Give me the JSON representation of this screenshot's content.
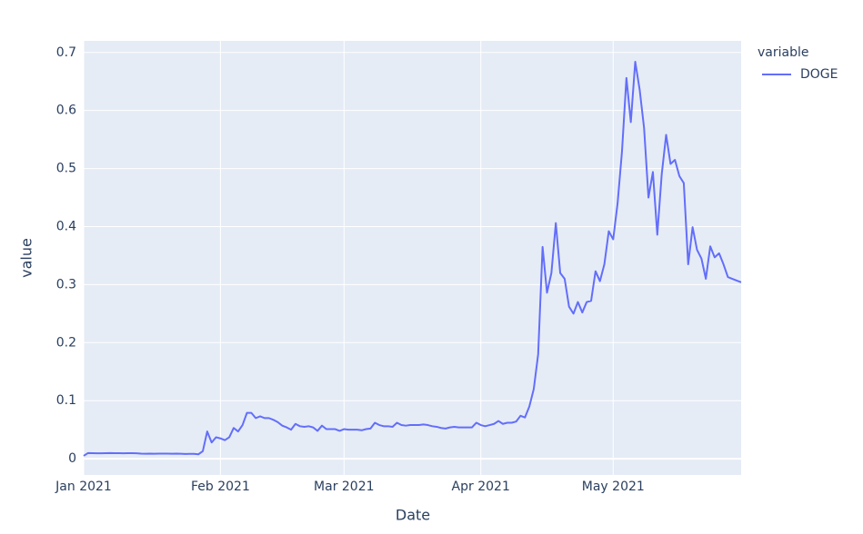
{
  "chart_data": {
    "type": "line",
    "x_label": "Date",
    "y_label": "value",
    "legend_title": "variable",
    "legend_position": "right",
    "grid": true,
    "x": [
      0,
      1,
      2,
      3,
      4,
      5,
      6,
      7,
      8,
      9,
      10,
      11,
      12,
      13,
      14,
      15,
      16,
      17,
      18,
      19,
      20,
      21,
      22,
      23,
      24,
      25,
      26,
      27,
      28,
      29,
      30,
      31,
      32,
      33,
      34,
      35,
      36,
      37,
      38,
      39,
      40,
      41,
      42,
      43,
      44,
      45,
      46,
      47,
      48,
      49,
      50,
      51,
      52,
      53,
      54,
      55,
      56,
      57,
      58,
      59,
      60,
      61,
      62,
      63,
      64,
      65,
      66,
      67,
      68,
      69,
      70,
      71,
      72,
      73,
      74,
      75,
      76,
      77,
      78,
      79,
      80,
      81,
      82,
      83,
      84,
      85,
      86,
      87,
      88,
      89,
      90,
      91,
      92,
      93,
      94,
      95,
      96,
      97,
      98,
      99,
      100,
      101,
      102,
      103,
      104,
      105,
      106,
      107,
      108,
      109,
      110,
      111,
      112,
      113,
      114,
      115,
      116,
      117,
      118,
      119,
      120,
      121,
      122,
      123,
      124,
      125,
      126,
      127,
      128,
      129,
      130,
      131,
      132,
      133,
      134,
      135,
      136,
      137,
      138,
      139,
      140,
      141,
      142,
      143,
      144,
      145,
      146,
      147,
      148,
      149
    ],
    "xlim": [
      0,
      149
    ],
    "xticks": [
      {
        "value": 0,
        "label": "Jan 2021"
      },
      {
        "value": 31,
        "label": "Feb 2021"
      },
      {
        "value": 59,
        "label": "Mar 2021"
      },
      {
        "value": 90,
        "label": "Apr 2021"
      },
      {
        "value": 120,
        "label": "May 2021"
      }
    ],
    "ylim": [
      -0.028,
      0.72
    ],
    "yticks": [
      0,
      0.1,
      0.2,
      0.3,
      0.4,
      0.5,
      0.6,
      0.7
    ],
    "series": [
      {
        "name": "DOGE",
        "color": "#636efa",
        "values": [
          0.005,
          0.0098,
          0.0095,
          0.0093,
          0.0094,
          0.0096,
          0.0097,
          0.0096,
          0.0095,
          0.0094,
          0.0096,
          0.0095,
          0.0093,
          0.0087,
          0.0086,
          0.0087,
          0.0085,
          0.0087,
          0.0088,
          0.0087,
          0.0086,
          0.0087,
          0.0085,
          0.0082,
          0.0083,
          0.0083,
          0.0076,
          0.013,
          0.047,
          0.028,
          0.037,
          0.035,
          0.032,
          0.037,
          0.053,
          0.047,
          0.058,
          0.079,
          0.079,
          0.07,
          0.073,
          0.07,
          0.07,
          0.067,
          0.063,
          0.057,
          0.054,
          0.05,
          0.06,
          0.056,
          0.055,
          0.056,
          0.054,
          0.048,
          0.057,
          0.051,
          0.051,
          0.051,
          0.048,
          0.051,
          0.05,
          0.05,
          0.05,
          0.049,
          0.051,
          0.052,
          0.062,
          0.058,
          0.056,
          0.056,
          0.055,
          0.062,
          0.058,
          0.057,
          0.058,
          0.058,
          0.058,
          0.059,
          0.058,
          0.056,
          0.055,
          0.053,
          0.052,
          0.054,
          0.055,
          0.054,
          0.054,
          0.054,
          0.054,
          0.062,
          0.058,
          0.056,
          0.058,
          0.06,
          0.065,
          0.06,
          0.062,
          0.062,
          0.064,
          0.074,
          0.071,
          0.09,
          0.12,
          0.18,
          0.365,
          0.286,
          0.32,
          0.406,
          0.32,
          0.31,
          0.262,
          0.25,
          0.27,
          0.252,
          0.27,
          0.272,
          0.323,
          0.306,
          0.335,
          0.392,
          0.378,
          0.44,
          0.53,
          0.656,
          0.58,
          0.684,
          0.636,
          0.57,
          0.45,
          0.494,
          0.386,
          0.49,
          0.558,
          0.508,
          0.515,
          0.487,
          0.475,
          0.335,
          0.399,
          0.36,
          0.345,
          0.31,
          0.366,
          0.347,
          0.354,
          0.335,
          0.313,
          0.31,
          0.307,
          0.304
        ]
      }
    ]
  }
}
